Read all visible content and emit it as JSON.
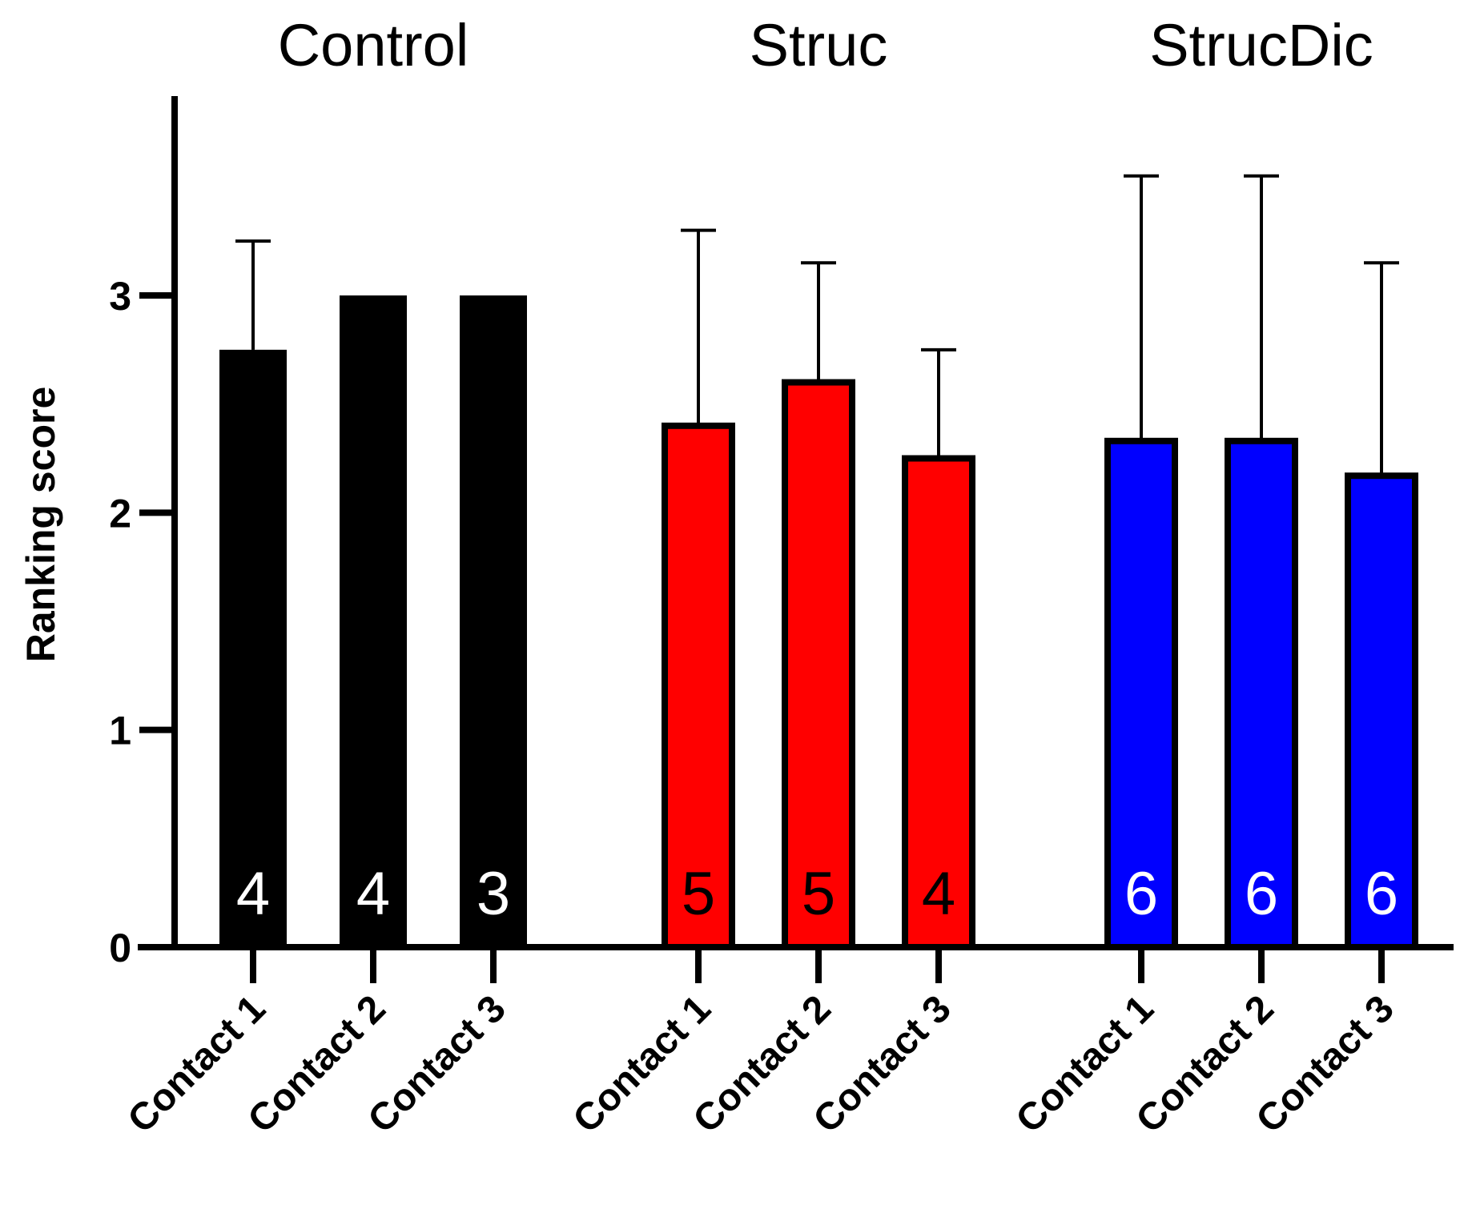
{
  "chart_data": {
    "type": "bar",
    "ylabel": "Ranking score",
    "xlabel": "",
    "ylim": [
      0,
      3.9
    ],
    "yticks": [
      0,
      1,
      2,
      3
    ],
    "groups": [
      {
        "title": "Control",
        "color": "#000000",
        "label_color": "#ffffff",
        "categories": [
          "Contact 1",
          "Contact 2",
          "Contact 3"
        ],
        "values": [
          2.75,
          3.0,
          3.0
        ],
        "error_upper": [
          3.25,
          null,
          null
        ],
        "n": [
          "4",
          "4",
          "3"
        ]
      },
      {
        "title": "Struc",
        "color": "#ff0000",
        "label_color": "#000000",
        "categories": [
          "Contact 1",
          "Contact 2",
          "Contact 3"
        ],
        "values": [
          2.4,
          2.6,
          2.25
        ],
        "error_upper": [
          3.3,
          3.15,
          2.75
        ],
        "n": [
          "5",
          "5",
          "4"
        ]
      },
      {
        "title": "StrucDic",
        "color": "#0000ff",
        "label_color": "#ffffff",
        "categories": [
          "Contact 1",
          "Contact 2",
          "Contact 3"
        ],
        "values": [
          2.33,
          2.33,
          2.17
        ],
        "error_upper": [
          3.55,
          3.55,
          3.15
        ],
        "n": [
          "6",
          "6",
          "6"
        ]
      }
    ]
  }
}
